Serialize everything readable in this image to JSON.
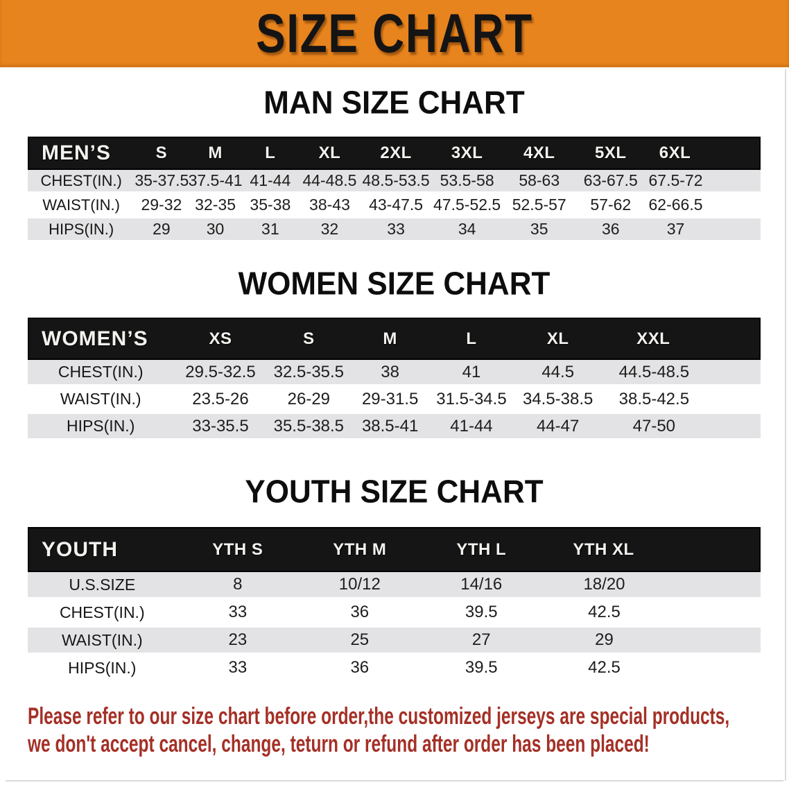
{
  "banner": {
    "title": "SIZE CHART"
  },
  "colors": {
    "banner_bg": "#E8841E",
    "header_bar": "#151515",
    "row_shade": "#E3E3E5",
    "disclaimer_text": "#A43026"
  },
  "sections": [
    {
      "title": "MAN SIZE CHART",
      "table": {
        "header": [
          "MEN’S",
          "S",
          "M",
          "L",
          "XL",
          "2XL",
          "3XL",
          "4XL",
          "5XL",
          "6XL"
        ],
        "rows": [
          {
            "label": "CHEST(IN.)",
            "values": [
              "35-37.5",
              "37.5-41",
              "41-44",
              "44-48.5",
              "48.5-53.5",
              "53.5-58",
              "58-63",
              "63-67.5",
              "67.5-72"
            ]
          },
          {
            "label": "WAIST(IN.)",
            "values": [
              "29-32",
              "32-35",
              "35-38",
              "38-43",
              "43-47.5",
              "47.5-52.5",
              "52.5-57",
              "57-62",
              "62-66.5"
            ]
          },
          {
            "label": "HIPS(IN.)",
            "values": [
              "29",
              "30",
              "31",
              "32",
              "33",
              "34",
              "35",
              "36",
              "37"
            ]
          }
        ]
      }
    },
    {
      "title": "WOMEN SIZE CHART",
      "table": {
        "header": [
          "WOMEN’S",
          "XS",
          "S",
          "M",
          "L",
          "XL",
          "XXL"
        ],
        "rows": [
          {
            "label": "CHEST(IN.)",
            "values": [
              "29.5-32.5",
              "32.5-35.5",
              "38",
              "41",
              "44.5",
              "44.5-48.5"
            ]
          },
          {
            "label": "WAIST(IN.)",
            "values": [
              "23.5-26",
              "26-29",
              "29-31.5",
              "31.5-34.5",
              "34.5-38.5",
              "38.5-42.5"
            ]
          },
          {
            "label": "HIPS(IN.)",
            "values": [
              "33-35.5",
              "35.5-38.5",
              "38.5-41",
              "41-44",
              "44-47",
              "47-50"
            ]
          }
        ]
      }
    },
    {
      "title": "YOUTH SIZE CHART",
      "table": {
        "header": [
          "YOUTH",
          "YTH S",
          "YTH M",
          "YTH L",
          "YTH XL"
        ],
        "rows": [
          {
            "label": "U.S.SIZE",
            "values": [
              "8",
              "10/12",
              "14/16",
              "18/20"
            ]
          },
          {
            "label": "CHEST(IN.)",
            "values": [
              "33",
              "36",
              "39.5",
              "42.5"
            ]
          },
          {
            "label": "WAIST(IN.)",
            "values": [
              "23",
              "25",
              "27",
              "29"
            ]
          },
          {
            "label": "HIPS(IN.)",
            "values": [
              "33",
              "36",
              "39.5",
              "42.5"
            ]
          }
        ]
      }
    }
  ],
  "disclaimer": {
    "line1": "Please refer to our size chart before order,the customized jerseys are special products,",
    "line2": "we don't accept cancel, change, teturn or refund after order has been placed!"
  }
}
